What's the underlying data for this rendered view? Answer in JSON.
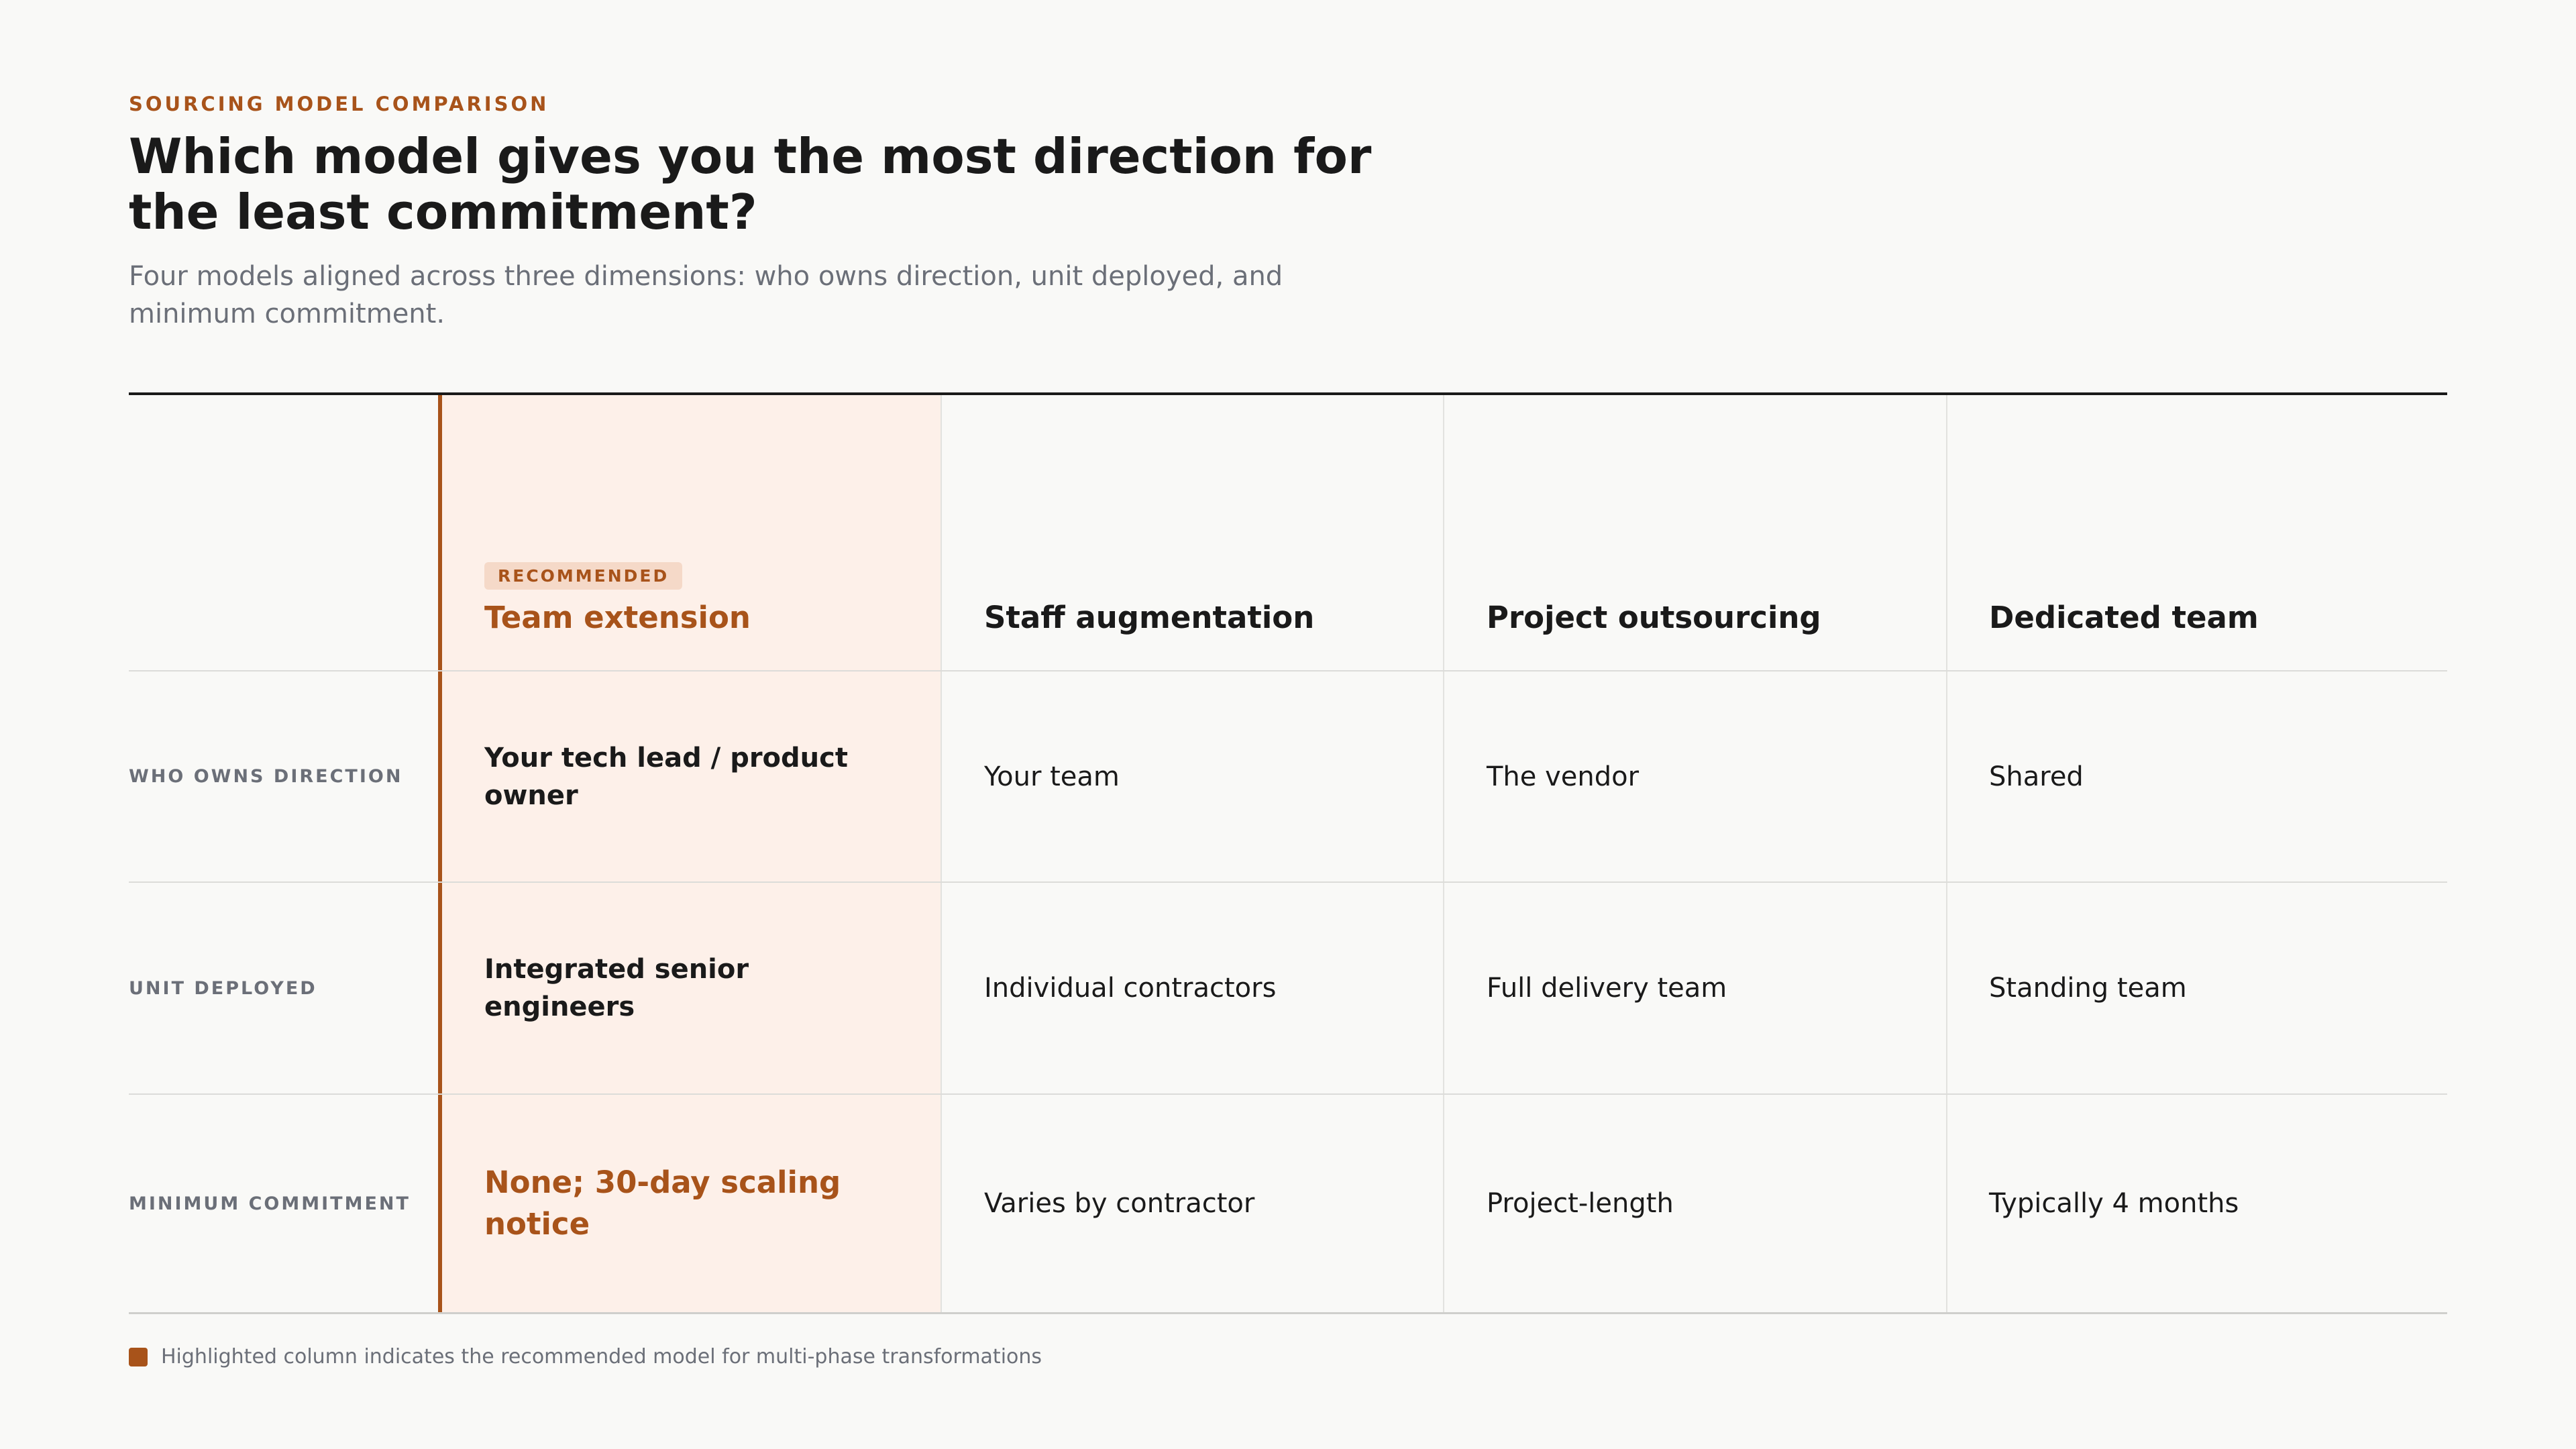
{
  "eyebrow": "SOURCING MODEL COMPARISON",
  "title": "Which model gives you the most direction for the least commitment?",
  "subtitle": "Four models aligned across three dimensions: who owns direction, unit deployed, and minimum commitment.",
  "colors": {
    "accent": "#a8531a",
    "highlight_background": "#fdf0e9",
    "badge_background": "#f5d9c8",
    "muted_text": "#6b6f78",
    "text": "#1a1a1a"
  },
  "table": {
    "badge": "RECOMMENDED",
    "columns": [
      "Team extension",
      "Staff augmentation",
      "Project outsourcing",
      "Dedicated team"
    ],
    "highlighted_column": "Team extension",
    "rows": [
      {
        "label": "WHO OWNS DIRECTION",
        "cells": [
          "Your tech lead / product owner",
          "Your team",
          "The vendor",
          "Shared"
        ]
      },
      {
        "label": "UNIT DEPLOYED",
        "cells": [
          "Integrated senior engineers",
          "Individual contractors",
          "Full delivery team",
          "Standing team"
        ]
      },
      {
        "label": "MINIMUM COMMITMENT",
        "cells": [
          "None; 30-day scaling notice",
          "Varies by contractor",
          "Project-length",
          "Typically 4 months"
        ]
      }
    ]
  },
  "legend": {
    "text": "Highlighted column indicates the recommended model for multi-phase transformations"
  }
}
